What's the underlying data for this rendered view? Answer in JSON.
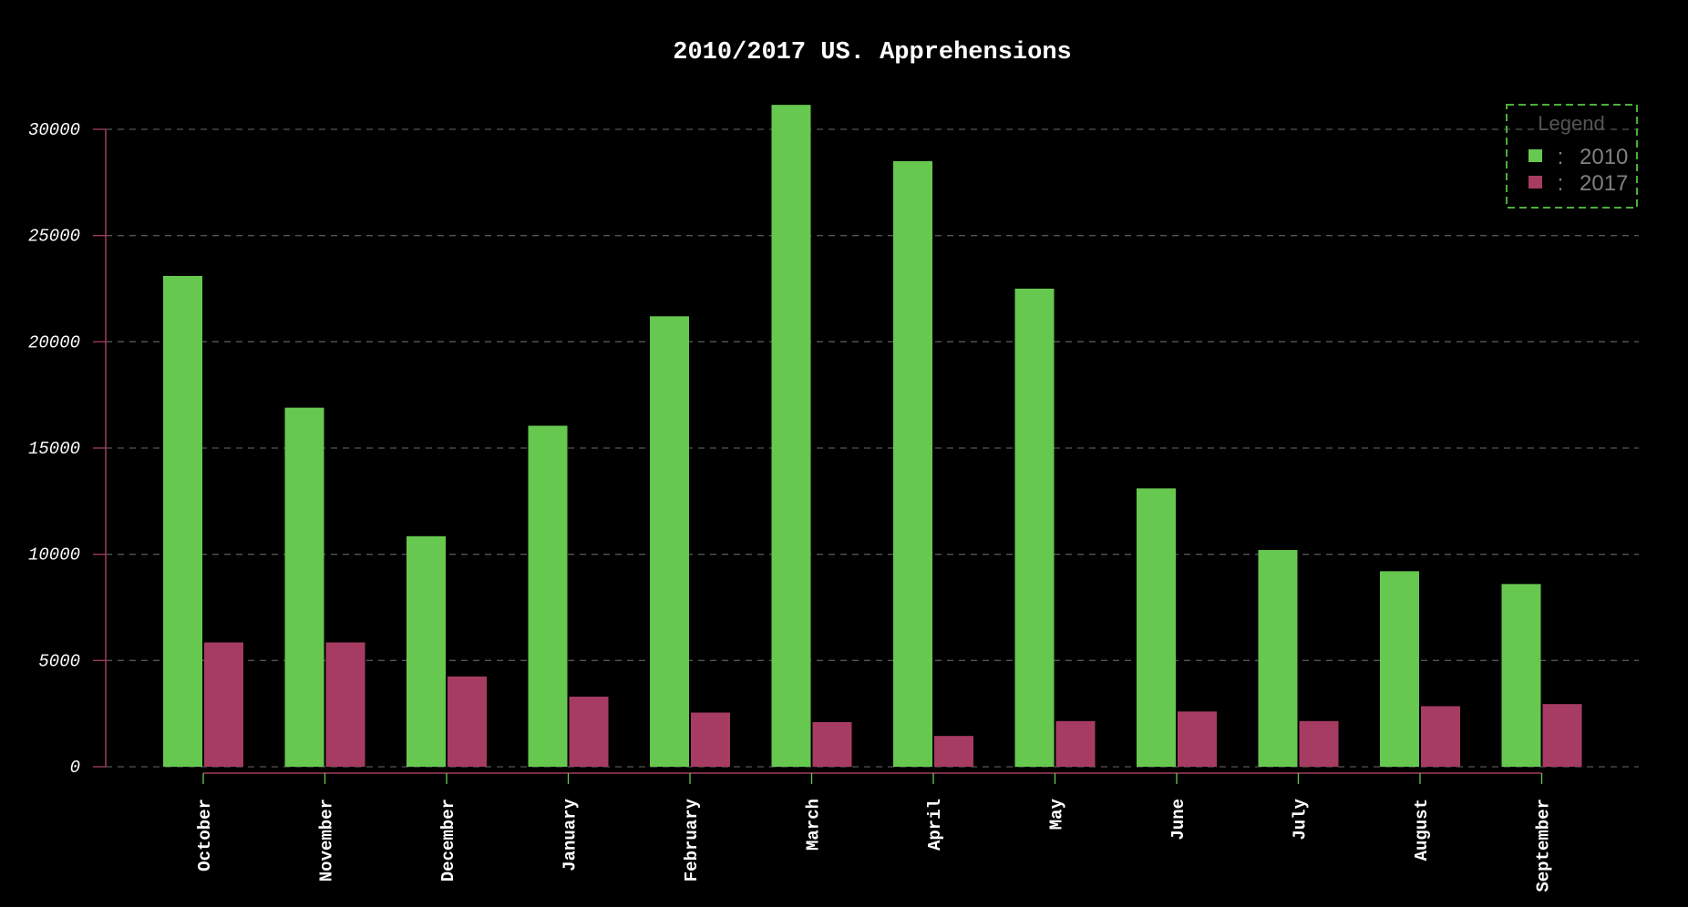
{
  "colors": {
    "background": "#000000",
    "series_2010": "#66c84f",
    "series_2017": "#a63c62",
    "grid": "#555555",
    "yaxis": "#a63c62",
    "xaxis": "#a63c62",
    "xtick": "#66c84f",
    "legend_border": "#4caf3a"
  },
  "chart_data": {
    "type": "bar",
    "title": "2010/2017 US. Apprehensions",
    "xlabel": "",
    "ylabel": "",
    "categories": [
      "October",
      "November",
      "December",
      "January",
      "February",
      "March",
      "April",
      "May",
      "June",
      "July",
      "August",
      "September"
    ],
    "series": [
      {
        "name": "2010",
        "values": [
          23100,
          16900,
          10850,
          16050,
          21200,
          31150,
          28500,
          22500,
          13100,
          10200,
          9200,
          8600
        ]
      },
      {
        "name": "2017",
        "values": [
          5850,
          5850,
          4250,
          3300,
          2550,
          2100,
          1450,
          2150,
          2600,
          2150,
          2850,
          2950
        ]
      }
    ],
    "ylim": [
      0,
      31000
    ],
    "yticks": [
      0,
      5000,
      10000,
      15000,
      20000,
      25000,
      30000
    ],
    "grid": true,
    "grid_style": "dashed",
    "legend": {
      "title": "Legend",
      "placement": "top-right",
      "separator": ":"
    }
  }
}
